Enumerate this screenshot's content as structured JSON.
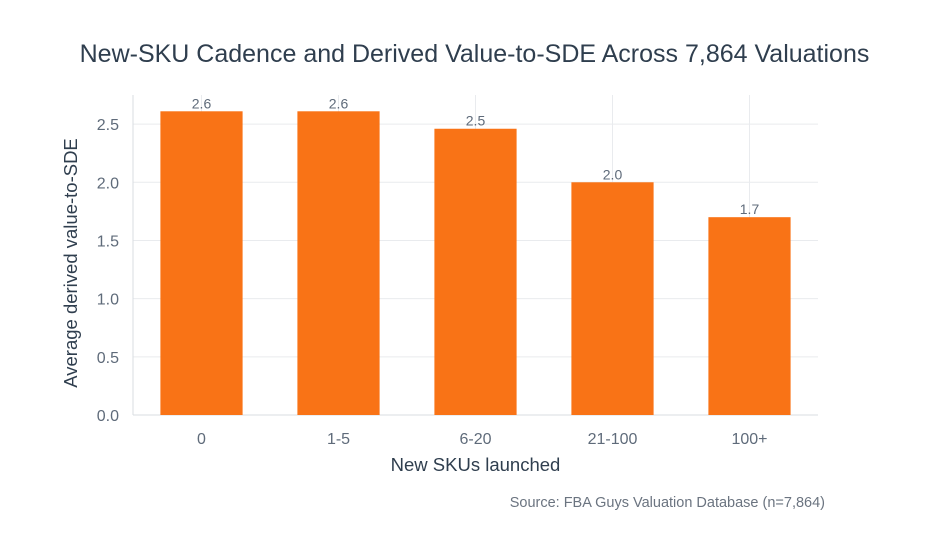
{
  "chart_data": {
    "type": "bar",
    "title": "New-SKU Cadence and Derived Value-to-SDE Across 7,864 Valuations",
    "xlabel": "New SKUs launched",
    "ylabel": "Average derived value-to-SDE",
    "categories": [
      "0",
      "1-5",
      "6-20",
      "21-100",
      "100+"
    ],
    "values": [
      2.61,
      2.61,
      2.46,
      2.0,
      1.7
    ],
    "data_labels": [
      "2.6",
      "2.6",
      "2.5",
      "2.0",
      "1.7"
    ],
    "ylim": [
      0,
      2.75
    ],
    "yticks": [
      0,
      0.5,
      1.0,
      1.5,
      2.0,
      2.5
    ],
    "ytick_labels": [
      "0.0",
      "0.5",
      "1.0",
      "1.5",
      "2.0",
      "2.5"
    ],
    "grid": true,
    "colors": {
      "bar": "#f97316",
      "grid": "#e9ebee",
      "axis_text": "#5f6b7a",
      "title": "#2f3e4e"
    },
    "source": "Source: FBA Guys Valuation Database (n=7,864)"
  }
}
